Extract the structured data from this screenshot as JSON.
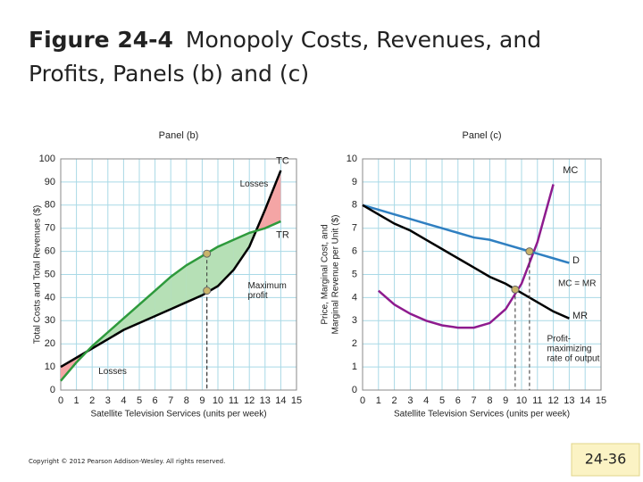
{
  "title": {
    "bold": "Figure 24-4",
    "lines": [
      "Monopoly Costs, Revenues, and",
      "Profits, Panels (b) and (c)"
    ]
  },
  "chart_data": [
    {
      "type": "line",
      "title": "Panel (b)",
      "xlabel": "Satellite Television Services (units per week)",
      "ylabel": [
        "Total Costs and Total Revenues ($)"
      ],
      "x": [
        0,
        1,
        2,
        3,
        4,
        5,
        6,
        7,
        8,
        9,
        10,
        11,
        12,
        13,
        14
      ],
      "xlim": [
        0,
        15
      ],
      "ylim": [
        0,
        100
      ],
      "xticks": [
        0,
        1,
        2,
        3,
        4,
        5,
        6,
        7,
        8,
        9,
        10,
        11,
        12,
        13,
        14,
        15
      ],
      "yticks": [
        0,
        10,
        20,
        30,
        40,
        50,
        60,
        70,
        80,
        90,
        100
      ],
      "grid": true,
      "grid_color": "#a9d9e6",
      "series": [
        {
          "name": "TC",
          "color": "#000000",
          "values": [
            10,
            14,
            18,
            22,
            26,
            29,
            32,
            35,
            38,
            41,
            45,
            52,
            62,
            78,
            95
          ]
        },
        {
          "name": "TR",
          "color": "#2e9a3c",
          "values": [
            4,
            12,
            19,
            25,
            31,
            37,
            43,
            49,
            54,
            58,
            62,
            65,
            68,
            70,
            73
          ]
        }
      ],
      "area_colors": {
        "loss": "#f4a5a5",
        "profit": "#b6e0b6"
      },
      "markers": [
        {
          "x": 9.3,
          "y": 59,
          "color": "#c9b46a"
        },
        {
          "x": 9.3,
          "y": 43,
          "color": "#c9b46a"
        }
      ],
      "annotations": [
        {
          "text": [
            "Losses"
          ]
        },
        {
          "text": [
            "Maximum",
            "profit"
          ]
        },
        {
          "text": [
            "Losses"
          ]
        }
      ]
    },
    {
      "type": "line",
      "title": "Panel (c)",
      "xlabel": "Satellite Television Services (units per week)",
      "ylabel": [
        "Price, Marginal Cost, and",
        "Marginal Revenue per Unit ($)"
      ],
      "x": [
        0,
        1,
        2,
        3,
        4,
        5,
        6,
        7,
        8,
        9,
        10,
        11,
        12,
        13,
        14
      ],
      "xlim": [
        0,
        15
      ],
      "ylim": [
        0,
        10
      ],
      "xticks": [
        0,
        1,
        2,
        3,
        4,
        5,
        6,
        7,
        8,
        9,
        10,
        11,
        12,
        13,
        14,
        15
      ],
      "yticks": [
        0,
        1,
        2,
        3,
        4,
        5,
        6,
        7,
        8,
        9,
        10
      ],
      "grid": true,
      "grid_color": "#a9d9e6",
      "series": [
        {
          "name": "MC",
          "color": "#8e1b8e",
          "values": [
            null,
            4.3,
            3.7,
            3.3,
            3.0,
            2.8,
            2.7,
            2.7,
            2.9,
            3.5,
            4.6,
            6.4,
            8.9,
            null,
            null
          ]
        },
        {
          "name": "D",
          "color": "#2f7fc1",
          "values": [
            8,
            7.8,
            7.6,
            7.4,
            7.2,
            7.0,
            6.8,
            6.6,
            6.5,
            6.3,
            6.1,
            5.9,
            5.7,
            5.5,
            null
          ]
        },
        {
          "name": "MR",
          "color": "#000000",
          "values": [
            8,
            7.6,
            7.2,
            6.9,
            6.5,
            6.1,
            5.7,
            5.3,
            4.9,
            4.6,
            4.2,
            3.8,
            3.4,
            3.1,
            null
          ]
        }
      ],
      "markers": [
        {
          "x": 10.5,
          "y": 6,
          "color": "#c9b46a"
        },
        {
          "x": 9.6,
          "y": 4.35,
          "color": "#c9b46a"
        }
      ],
      "annotations": [
        {
          "text": [
            "MC = MR"
          ]
        },
        {
          "text": [
            "Profit-",
            "maximizing",
            "rate of output"
          ]
        }
      ]
    }
  ],
  "footer": {
    "copyright": "Copyright © 2012 Pearson Addison-Wesley. All rights reserved.",
    "page": "24-36"
  }
}
